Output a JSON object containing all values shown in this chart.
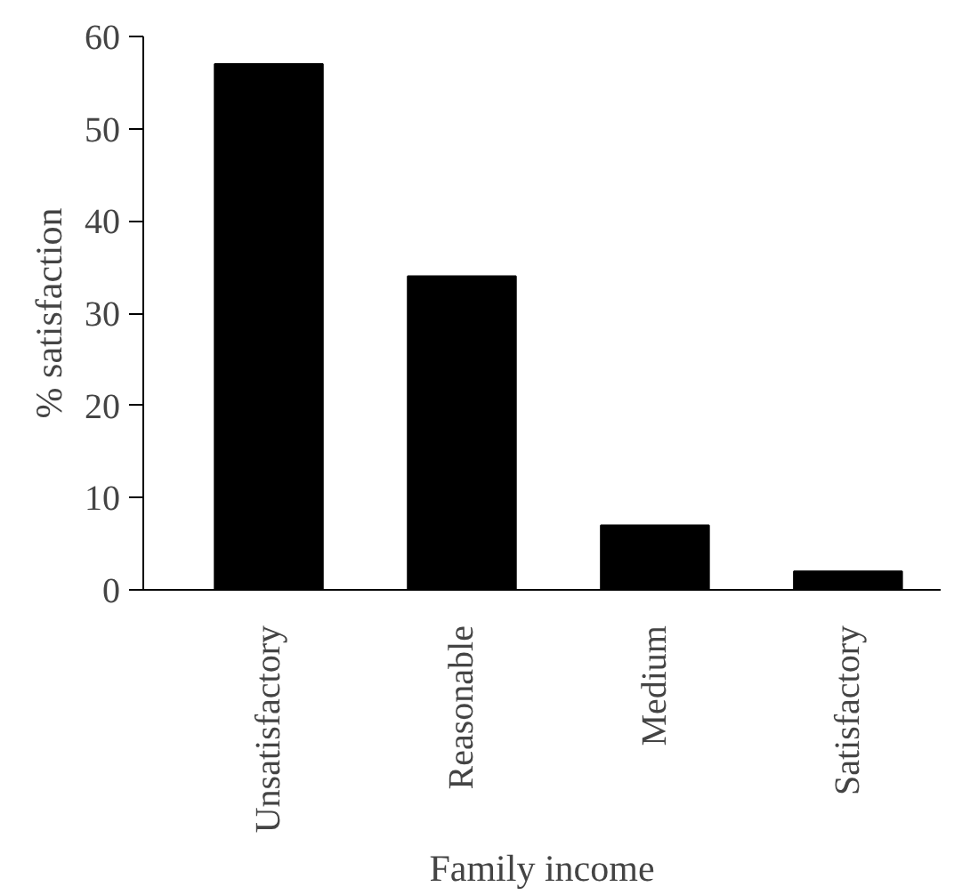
{
  "chart_data": {
    "type": "bar",
    "xlabel": "Family income",
    "ylabel": "% satisfaction",
    "categories": [
      "Unsatisfactory",
      "Reasonable",
      "Medium",
      "Satisfactory"
    ],
    "values": [
      57,
      34,
      7,
      2
    ],
    "color": "#000000",
    "ylim": [
      0,
      60
    ],
    "yticks": [
      0,
      10,
      20,
      30,
      40,
      50,
      60
    ],
    "grid": false
  }
}
